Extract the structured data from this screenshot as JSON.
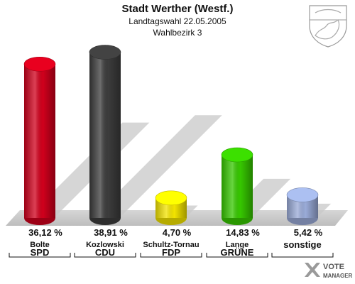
{
  "chart_data": {
    "type": "bar",
    "title": "Stadt Werther (Westf.)",
    "subtitle": "Landtagswahl 22.05.2005",
    "subtitle2": "Wahlbezirk 3",
    "categories": [
      "SPD",
      "CDU",
      "FDP",
      "GRÜNE",
      "sonstige"
    ],
    "candidates": [
      "Bolte",
      "Kozlowski",
      "Schultz-Tornau",
      "Lange",
      ""
    ],
    "values": [
      36.12,
      38.91,
      4.7,
      14.83,
      5.42
    ],
    "value_labels": [
      "36,12 %",
      "38,91 %",
      "4,70 %",
      "14,83 %",
      "5,42 %"
    ],
    "colors": [
      "#d0001c",
      "#3c3c3c",
      "#f3e400",
      "#36c800",
      "#9aabd8"
    ],
    "ylim": [
      0,
      40
    ],
    "grid": false
  },
  "brand": {
    "logo_line1": "VOTE",
    "logo_line2": "MANAGER"
  }
}
